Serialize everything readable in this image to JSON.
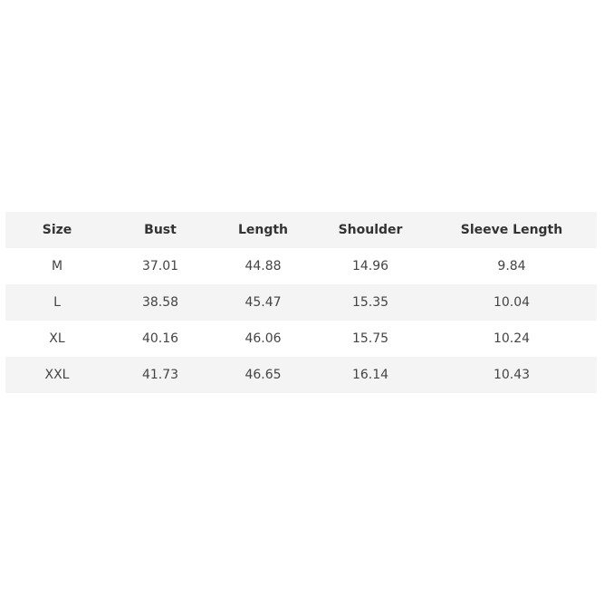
{
  "table": {
    "headers": [
      "Size",
      "Bust",
      "Length",
      "Shoulder",
      "Sleeve Length"
    ],
    "rows": [
      [
        "M",
        "37.01",
        "44.88",
        "14.96",
        "9.84"
      ],
      [
        "L",
        "38.58",
        "45.47",
        "15.35",
        "10.04"
      ],
      [
        "XL",
        "40.16",
        "46.06",
        "15.75",
        "10.24"
      ],
      [
        "XXL",
        "41.73",
        "46.65",
        "16.14",
        "10.43"
      ]
    ]
  },
  "colors": {
    "header_bg": "#f4f4f4",
    "stripe_bg": "#f4f4f4",
    "text": "#333333"
  }
}
